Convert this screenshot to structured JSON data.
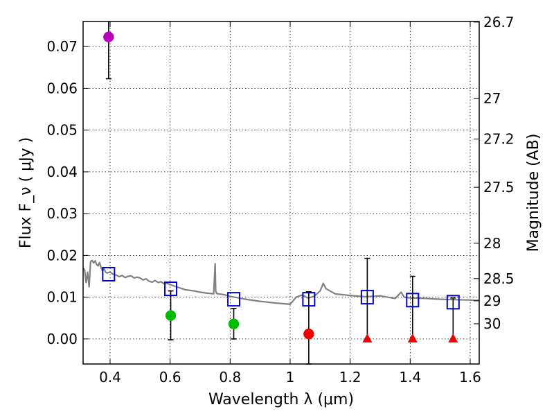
{
  "chart_data": {
    "type": "scatter",
    "xlabel": "Wavelength  λ (μm)",
    "ylabel": "Flux  F_ν  ( μJy )",
    "y2label": "Magnitude (AB)",
    "xlim": [
      0.31,
      1.63
    ],
    "ylim": [
      -0.006,
      0.076
    ],
    "grid": true,
    "x_ticks": [
      {
        "value": 0.4,
        "label": "0.4"
      },
      {
        "value": 0.6,
        "label": "0.6"
      },
      {
        "value": 0.8,
        "label": "0.8"
      },
      {
        "value": 1.0,
        "label": "1"
      },
      {
        "value": 1.2,
        "label": "1.2"
      },
      {
        "value": 1.4,
        "label": "1.4"
      },
      {
        "value": 1.6,
        "label": "1.6"
      }
    ],
    "y_ticks": [
      {
        "value": 0.0,
        "label": "0.00"
      },
      {
        "value": 0.01,
        "label": "0.01"
      },
      {
        "value": 0.02,
        "label": "0.02"
      },
      {
        "value": 0.03,
        "label": "0.03"
      },
      {
        "value": 0.04,
        "label": "0.04"
      },
      {
        "value": 0.05,
        "label": "0.05"
      },
      {
        "value": 0.06,
        "label": "0.06"
      },
      {
        "value": 0.07,
        "label": "0.07"
      }
    ],
    "y2_ticks": [
      {
        "value": 26.7,
        "label": "26.7"
      },
      {
        "value": 27.0,
        "label": "27"
      },
      {
        "value": 27.2,
        "label": "27.2"
      },
      {
        "value": 27.5,
        "label": "27.5"
      },
      {
        "value": 28.0,
        "label": "28"
      },
      {
        "value": 28.5,
        "label": "28.5"
      },
      {
        "value": 29.0,
        "label": "29"
      },
      {
        "value": 30.0,
        "label": "30"
      }
    ],
    "series": [
      {
        "name": "model-spectrum",
        "kind": "line",
        "color": "#808080",
        "x": [
          0.31,
          0.315,
          0.32,
          0.325,
          0.33,
          0.335,
          0.34,
          0.345,
          0.35,
          0.355,
          0.36,
          0.365,
          0.37,
          0.375,
          0.38,
          0.385,
          0.39,
          0.4,
          0.41,
          0.42,
          0.43,
          0.44,
          0.45,
          0.46,
          0.47,
          0.48,
          0.49,
          0.5,
          0.51,
          0.52,
          0.53,
          0.54,
          0.55,
          0.56,
          0.57,
          0.58,
          0.59,
          0.6,
          0.62,
          0.65,
          0.68,
          0.7,
          0.72,
          0.745,
          0.75,
          0.752,
          0.755,
          0.76,
          0.78,
          0.8,
          0.85,
          0.9,
          0.95,
          1.0,
          1.02,
          1.04,
          1.06,
          1.08,
          1.1,
          1.11,
          1.12,
          1.15,
          1.2,
          1.25,
          1.3,
          1.35,
          1.37,
          1.38,
          1.4,
          1.45,
          1.5,
          1.55,
          1.6,
          1.63
        ],
        "y": [
          0.017,
          0.0165,
          0.0135,
          0.016,
          0.0125,
          0.0185,
          0.0188,
          0.0182,
          0.0187,
          0.0178,
          0.0175,
          0.0183,
          0.017,
          0.0163,
          0.0168,
          0.016,
          0.0158,
          0.016,
          0.0155,
          0.0153,
          0.0149,
          0.0152,
          0.0147,
          0.015,
          0.0151,
          0.0146,
          0.0148,
          0.0146,
          0.0141,
          0.0144,
          0.0138,
          0.0136,
          0.014,
          0.0135,
          0.0137,
          0.0132,
          0.0133,
          0.013,
          0.0125,
          0.0118,
          0.0115,
          0.0112,
          0.011,
          0.0108,
          0.018,
          0.0115,
          0.0109,
          0.0108,
          0.0106,
          0.0102,
          0.0095,
          0.009,
          0.0086,
          0.0083,
          0.01,
          0.0105,
          0.0098,
          0.0102,
          0.0115,
          0.0133,
          0.012,
          0.0108,
          0.0104,
          0.0101,
          0.0103,
          0.0097,
          0.0112,
          0.01,
          0.0098,
          0.0097,
          0.0095,
          0.0094,
          0.0093,
          0.0092
        ]
      },
      {
        "name": "model-photometry",
        "kind": "open-square",
        "color": "#0000cc",
        "x": [
          0.395,
          0.602,
          0.812,
          1.062,
          1.257,
          1.408,
          1.543
        ],
        "y": [
          0.0155,
          0.012,
          0.0095,
          0.0095,
          0.01,
          0.0093,
          0.0088
        ]
      },
      {
        "name": "observed-purple",
        "kind": "circle",
        "color": "#bb00bb",
        "x": [
          0.395
        ],
        "y": [
          0.0723
        ],
        "err": [
          [
            0.0623,
            0.0775
          ]
        ]
      },
      {
        "name": "observed-green",
        "kind": "circle",
        "color": "#00bb00",
        "x": [
          0.602,
          0.812
        ],
        "y": [
          0.0056,
          0.0036
        ],
        "err": [
          [
            -0.0002,
            0.0115
          ],
          [
            0.0,
            0.0073
          ]
        ]
      },
      {
        "name": "observed-red",
        "kind": "circle",
        "color": "#ee0000",
        "x": [
          1.062
        ],
        "y": [
          0.0012
        ],
        "err": [
          [
            -0.006,
            0.0113
          ]
        ]
      },
      {
        "name": "upper-limits",
        "kind": "triangle",
        "color": "#ee0000",
        "x": [
          1.257,
          1.408,
          1.543
        ],
        "y": [
          0.0,
          0.0,
          0.0
        ],
        "err": [
          [
            0.0,
            0.0193
          ],
          [
            0.0,
            0.015
          ],
          [
            0.0,
            0.0098
          ]
        ]
      }
    ]
  }
}
